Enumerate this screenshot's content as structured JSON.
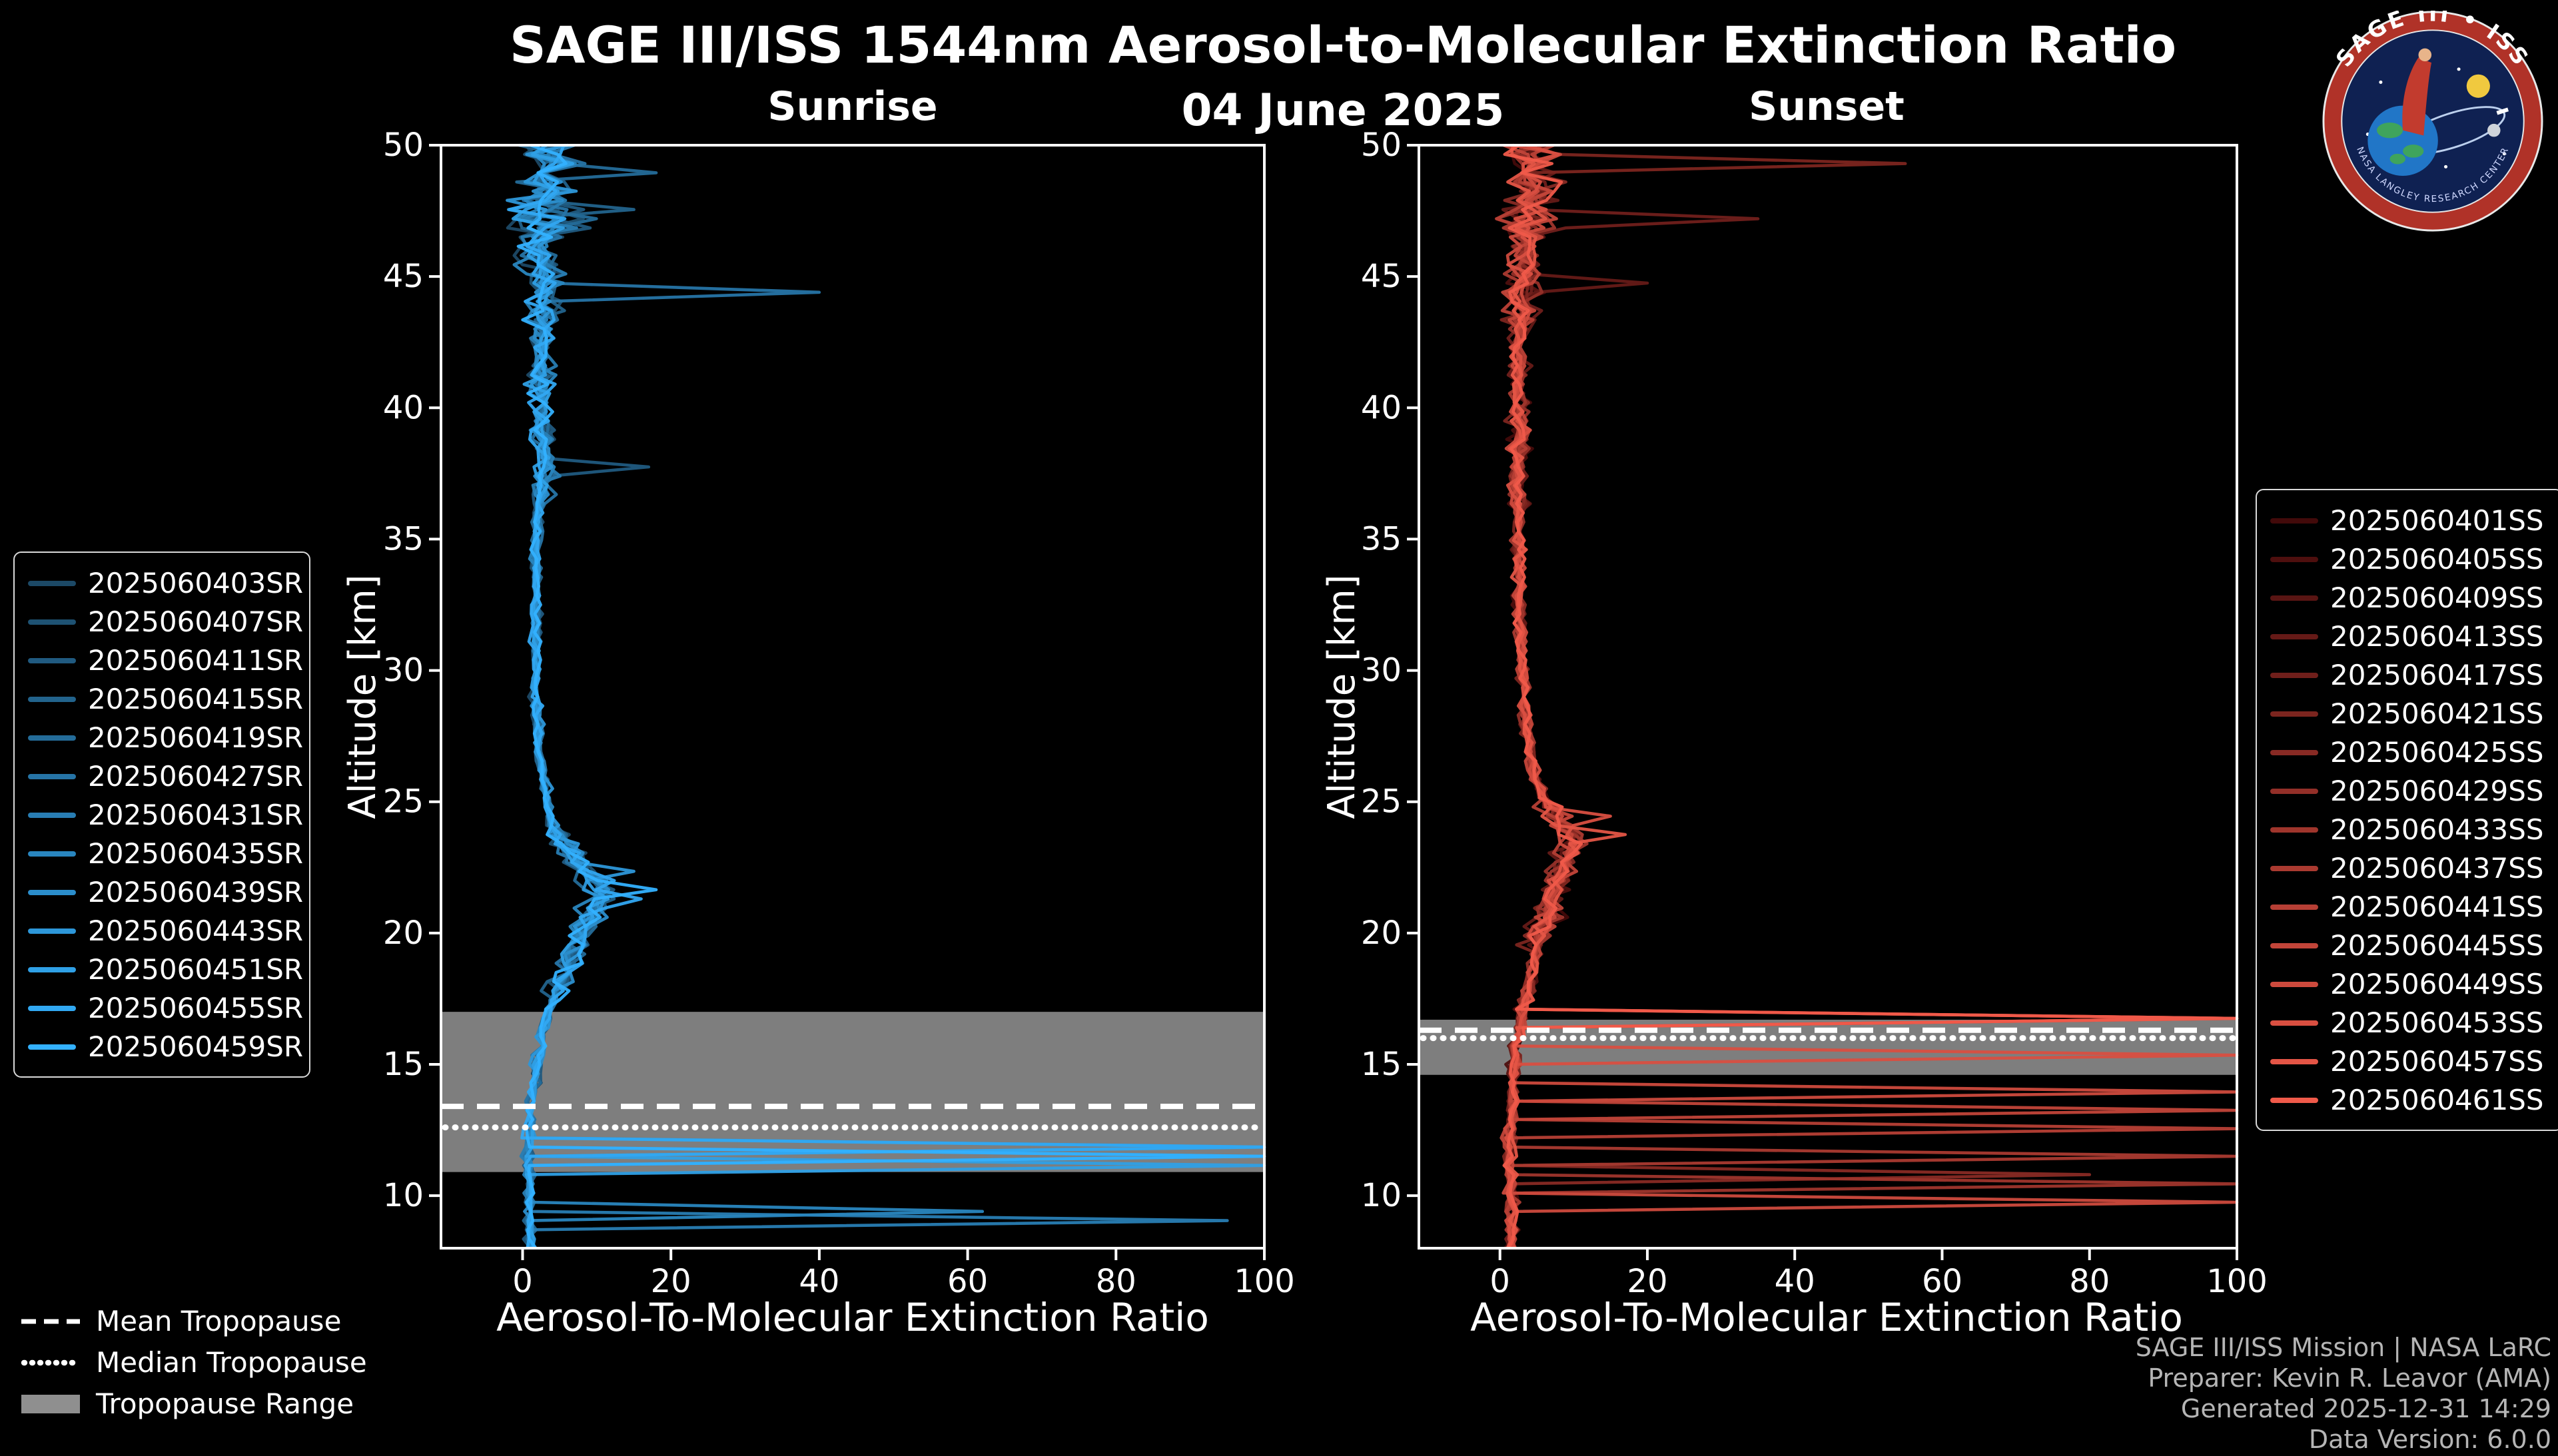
{
  "header": {
    "title": "SAGE III/ISS 1544nm Aerosol-to-Molecular Extinction Ratio",
    "date": "04 June 2025"
  },
  "logo": {
    "title": "SAGE III • ISS",
    "subtext": "NASA LANGLEY RESEARCH CENTER"
  },
  "tropopause_legend": {
    "mean": "Mean Tropopause",
    "median": "Median Tropopause",
    "range": "Tropopause Range"
  },
  "footer": {
    "line1": "SAGE III/ISS Mission | NASA LaRC",
    "line2": "Preparer: Kevin R. Leavor (AMA)",
    "line3": "Generated 2025-12-31 14:29",
    "line4": "Data Version: 6.0.0"
  },
  "chart_data": [
    {
      "id": "sunrise",
      "type": "line",
      "panel_title": "Sunrise",
      "xlabel": "Aerosol-To-Molecular Extinction Ratio",
      "ylabel": "Altitude [km]",
      "xlim": [
        -11,
        100
      ],
      "ylim": [
        8,
        50
      ],
      "xticks": [
        0,
        20,
        40,
        60,
        80,
        100
      ],
      "yticks": [
        10,
        15,
        20,
        25,
        30,
        35,
        40,
        45,
        50
      ],
      "band_color": "#8f8f8f",
      "tropopause": {
        "mean": 13.4,
        "median": 12.6,
        "range": [
          10.9,
          17.0
        ]
      },
      "base_profile": [
        [
          50,
          3
        ],
        [
          48,
          3
        ],
        [
          46,
          2.5
        ],
        [
          44,
          3
        ],
        [
          42,
          2.5
        ],
        [
          40,
          2.5
        ],
        [
          38,
          3
        ],
        [
          36,
          2
        ],
        [
          34,
          1.8
        ],
        [
          32,
          1.8
        ],
        [
          30,
          1.8
        ],
        [
          28,
          2
        ],
        [
          26,
          2.6
        ],
        [
          24,
          4
        ],
        [
          22.5,
          8
        ],
        [
          21.5,
          11
        ],
        [
          20.5,
          9
        ],
        [
          19,
          6.5
        ],
        [
          18,
          5
        ],
        [
          17,
          3.5
        ],
        [
          16,
          2.5
        ],
        [
          15,
          2
        ],
        [
          14,
          1.5
        ],
        [
          13,
          1.2
        ],
        [
          12,
          0.8
        ],
        [
          11,
          0.8
        ],
        [
          10,
          1
        ],
        [
          9,
          1
        ],
        [
          8,
          1.2
        ]
      ],
      "noise_bands": [
        {
          "min": 46.5,
          "amp": 6.0
        },
        {
          "min": 43,
          "amp": 3.8
        },
        {
          "min": 36.5,
          "amp": 2.0
        },
        {
          "min": 24,
          "amp": 0.85
        },
        {
          "min": 17.5,
          "amp": 2.4
        },
        {
          "min": 12.5,
          "amp": 0.9
        },
        {
          "min": -99,
          "amp": 0.9
        }
      ],
      "excursions": [
        {
          "series": 12,
          "alt": 11.5,
          "to": 100
        },
        {
          "series": 11,
          "alt": 11.8,
          "to": 100
        },
        {
          "series": 10,
          "alt": 11.3,
          "to": 100
        },
        {
          "series": 9,
          "alt": 12.0,
          "to": 100
        },
        {
          "series": 8,
          "alt": 11.6,
          "to": 100
        },
        {
          "series": 7,
          "alt": 9.5,
          "to": 62
        },
        {
          "series": 6,
          "alt": 8.9,
          "to": 95
        },
        {
          "series": 5,
          "alt": 44.5,
          "to": 40
        },
        {
          "series": 4,
          "alt": 48.8,
          "to": 18
        },
        {
          "series": 3,
          "alt": 47.6,
          "to": 15
        },
        {
          "series": 2,
          "alt": 37.8,
          "to": 17
        },
        {
          "series": 12,
          "alt": 21.8,
          "to": 18
        },
        {
          "series": 11,
          "alt": 21.3,
          "to": 16
        },
        {
          "series": 9,
          "alt": 22.3,
          "to": 15
        }
      ],
      "series": [
        {
          "label": "2025060403SR",
          "color": "#1c4966"
        },
        {
          "label": "2025060407SR",
          "color": "#1e5273"
        },
        {
          "label": "2025060411SR",
          "color": "#205a80"
        },
        {
          "label": "2025060415SR",
          "color": "#22638c"
        },
        {
          "label": "2025060419SR",
          "color": "#246c99"
        },
        {
          "label": "2025060427SR",
          "color": "#2674a6"
        },
        {
          "label": "2025060431SR",
          "color": "#287db3"
        },
        {
          "label": "2025060435SR",
          "color": "#2986bf"
        },
        {
          "label": "2025060439SR",
          "color": "#2b8ecc"
        },
        {
          "label": "2025060443SR",
          "color": "#2d97d9"
        },
        {
          "label": "2025060451SR",
          "color": "#2fa0e6"
        },
        {
          "label": "2025060455SR",
          "color": "#31a8f2"
        },
        {
          "label": "2025060459SR",
          "color": "#33b1ff"
        }
      ]
    },
    {
      "id": "sunset",
      "type": "line",
      "panel_title": "Sunset",
      "xlabel": "Aerosol-To-Molecular Extinction Ratio",
      "ylabel": "Altitude [km]",
      "xlim": [
        -11,
        100
      ],
      "ylim": [
        8,
        50
      ],
      "xticks": [
        0,
        20,
        40,
        60,
        80,
        100
      ],
      "yticks": [
        10,
        15,
        20,
        25,
        30,
        35,
        40,
        45,
        50
      ],
      "band_color": "#8f8f8f",
      "tropopause": {
        "mean": 16.3,
        "median": 16.0,
        "range": [
          14.6,
          16.7
        ]
      },
      "base_profile": [
        [
          50,
          4
        ],
        [
          48,
          4
        ],
        [
          46,
          3.5
        ],
        [
          44,
          3
        ],
        [
          42,
          2.6
        ],
        [
          40,
          2.5
        ],
        [
          38,
          2.5
        ],
        [
          36,
          2.5
        ],
        [
          34,
          2.5
        ],
        [
          32,
          2.6
        ],
        [
          30,
          3
        ],
        [
          28,
          3.5
        ],
        [
          26,
          4.5
        ],
        [
          24.5,
          7.5
        ],
        [
          23.5,
          10
        ],
        [
          22.5,
          8.5
        ],
        [
          21,
          6.5
        ],
        [
          19.5,
          5
        ],
        [
          18,
          4
        ],
        [
          17,
          3
        ],
        [
          16,
          2.5
        ],
        [
          15,
          2
        ],
        [
          14,
          1.8
        ],
        [
          13,
          1.5
        ],
        [
          12,
          1.2
        ],
        [
          11,
          1.2
        ],
        [
          10,
          1.5
        ],
        [
          9,
          1.5
        ],
        [
          8,
          1.5
        ]
      ],
      "noise_bands": [
        {
          "min": 46.5,
          "amp": 4.6
        },
        {
          "min": 43,
          "amp": 2.8
        },
        {
          "min": 36,
          "amp": 1.6
        },
        {
          "min": 25,
          "amp": 1.0
        },
        {
          "min": 19.5,
          "amp": 2.4
        },
        {
          "min": -99,
          "amp": 1.1
        }
      ],
      "excursions": [
        {
          "series": 15,
          "alt": 16.8,
          "to": 100
        },
        {
          "series": 14,
          "alt": 16.6,
          "to": 100
        },
        {
          "series": 13,
          "alt": 15.2,
          "to": 100
        },
        {
          "series": 12,
          "alt": 14.1,
          "to": 100
        },
        {
          "series": 11,
          "alt": 13.2,
          "to": 100
        },
        {
          "series": 10,
          "alt": 12.4,
          "to": 100
        },
        {
          "series": 9,
          "alt": 11.5,
          "to": 100
        },
        {
          "series": 8,
          "alt": 10.5,
          "to": 100
        },
        {
          "series": 12,
          "alt": 9.7,
          "to": 100
        },
        {
          "series": 7,
          "alt": 16.9,
          "to": 100
        },
        {
          "series": 6,
          "alt": 10.9,
          "to": 80
        },
        {
          "series": 5,
          "alt": 49.2,
          "to": 55
        },
        {
          "series": 4,
          "alt": 47.1,
          "to": 35
        },
        {
          "series": 3,
          "alt": 44.8,
          "to": 20
        },
        {
          "series": 14,
          "alt": 23.6,
          "to": 17
        },
        {
          "series": 13,
          "alt": 24.3,
          "to": 15
        }
      ],
      "series": [
        {
          "label": "2025060401SS",
          "color": "#420a0a"
        },
        {
          "label": "2025060405SS",
          "color": "#4e0f0e"
        },
        {
          "label": "2025060409SS",
          "color": "#591513"
        },
        {
          "label": "2025060413SS",
          "color": "#651a17"
        },
        {
          "label": "2025060417SS",
          "color": "#701f1b"
        },
        {
          "label": "2025060421SS",
          "color": "#7c251f"
        },
        {
          "label": "2025060425SS",
          "color": "#882a24"
        },
        {
          "label": "2025060429SS",
          "color": "#932f28"
        },
        {
          "label": "2025060433SS",
          "color": "#9f352c"
        },
        {
          "label": "2025060437SS",
          "color": "#aa3a30"
        },
        {
          "label": "2025060441SS",
          "color": "#b63f35"
        },
        {
          "label": "2025060445SS",
          "color": "#c24539"
        },
        {
          "label": "2025060449SS",
          "color": "#cd4a3d"
        },
        {
          "label": "2025060453SS",
          "color": "#d94f41"
        },
        {
          "label": "2025060457SS",
          "color": "#e45546"
        },
        {
          "label": "2025060461SS",
          "color": "#f05a4a"
        }
      ]
    }
  ]
}
